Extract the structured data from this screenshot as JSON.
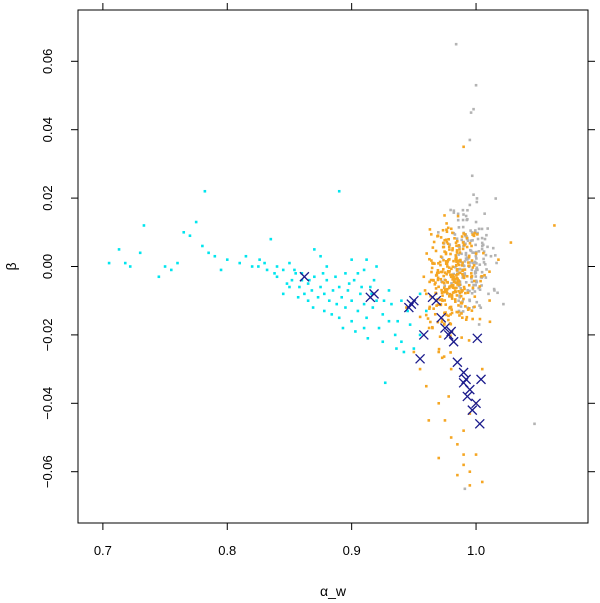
{
  "chart_data": {
    "type": "scatter",
    "title": "",
    "xlabel": "α_w",
    "ylabel": "β",
    "xlim": [
      0.68,
      1.09
    ],
    "ylim": [
      -0.075,
      0.075
    ],
    "x_ticks": [
      0.7,
      0.8,
      0.9,
      1.0
    ],
    "x_tick_labels": [
      "0.7",
      "0.8",
      "0.9",
      "1.0"
    ],
    "y_ticks": [
      -0.06,
      -0.04,
      -0.02,
      0.0,
      0.02,
      0.04,
      0.06
    ],
    "y_tick_labels": [
      "−0.06",
      "−0.04",
      "−0.02",
      "0.00",
      "0.02",
      "0.04",
      "0.06"
    ],
    "grid": false,
    "legend": "none",
    "series": [
      {
        "color": "#b3b3b3",
        "marker": "square-dot",
        "cluster": {
          "center": [
            0.995,
            0.002
          ],
          "spread": [
            0.009,
            0.009
          ],
          "count": 170,
          "seed": 11
        },
        "points": [
          [
            0.984,
            0.065
          ],
          [
            1.0,
            0.053
          ],
          [
            0.998,
            0.046
          ],
          [
            0.996,
            0.045
          ],
          [
            0.995,
            0.037
          ],
          [
            0.998,
            0.021
          ],
          [
            0.995,
            0.018
          ],
          [
            1.0,
            0.013
          ],
          [
            1.01,
            -0.008
          ],
          [
            1.022,
            -0.011
          ],
          [
            1.047,
            -0.046
          ],
          [
            0.991,
            -0.065
          ],
          [
            0.986,
            -0.01
          ],
          [
            1.005,
            0.006
          ],
          [
            1.012,
            0.003
          ]
        ]
      },
      {
        "color": "#f5a623",
        "marker": "square-dot",
        "cluster": {
          "center": [
            0.98,
            -0.004
          ],
          "spread": [
            0.01,
            0.008
          ],
          "count": 300,
          "seed": 7
        },
        "points": [
          [
            1.063,
            0.012
          ],
          [
            0.99,
            0.035
          ],
          [
            0.944,
            -0.012
          ],
          [
            0.95,
            -0.025
          ],
          [
            0.955,
            -0.03
          ],
          [
            0.96,
            -0.035
          ],
          [
            0.97,
            -0.04
          ],
          [
            0.975,
            -0.045
          ],
          [
            0.98,
            -0.05
          ],
          [
            0.985,
            -0.052
          ],
          [
            0.99,
            -0.055
          ],
          [
            0.99,
            -0.058
          ],
          [
            0.995,
            -0.06
          ],
          [
            0.985,
            -0.061
          ],
          [
            1.005,
            -0.063
          ],
          [
            0.995,
            -0.064
          ],
          [
            0.99,
            -0.048
          ],
          [
            1.0,
            -0.055
          ],
          [
            0.995,
            -0.043
          ],
          [
            0.965,
            -0.018
          ],
          [
            0.97,
            -0.025
          ],
          [
            1.0,
            -0.04
          ],
          [
            1.005,
            -0.03
          ],
          [
            0.98,
            -0.03
          ],
          [
            0.978,
            -0.038
          ],
          [
            0.962,
            -0.045
          ],
          [
            1.028,
            0.007
          ],
          [
            1.018,
            0.002
          ],
          [
            0.97,
            -0.056
          ],
          [
            0.96,
            -0.008
          ],
          [
            0.958,
            -0.003
          ]
        ]
      },
      {
        "color": "#00e5ee",
        "marker": "square-dot",
        "points": [
          [
            0.705,
            0.001
          ],
          [
            0.713,
            0.005
          ],
          [
            0.718,
            0.001
          ],
          [
            0.722,
            0.0
          ],
          [
            0.73,
            0.004
          ],
          [
            0.733,
            0.012
          ],
          [
            0.745,
            -0.003
          ],
          [
            0.75,
            0.0
          ],
          [
            0.755,
            -0.001
          ],
          [
            0.76,
            0.001
          ],
          [
            0.765,
            0.01
          ],
          [
            0.77,
            0.009
          ],
          [
            0.775,
            0.013
          ],
          [
            0.78,
            0.006
          ],
          [
            0.782,
            0.022
          ],
          [
            0.785,
            0.004
          ],
          [
            0.79,
            0.003
          ],
          [
            0.795,
            -0.001
          ],
          [
            0.8,
            0.002
          ],
          [
            0.81,
            0.001
          ],
          [
            0.815,
            0.003
          ],
          [
            0.82,
            0.0
          ],
          [
            0.825,
            0.0
          ],
          [
            0.83,
            0.001
          ],
          [
            0.835,
            0.008
          ],
          [
            0.84,
            0.0
          ],
          [
            0.84,
            -0.003
          ],
          [
            0.845,
            -0.001
          ],
          [
            0.848,
            -0.005
          ],
          [
            0.85,
            -0.006
          ],
          [
            0.852,
            -0.004
          ],
          [
            0.855,
            -0.002
          ],
          [
            0.858,
            -0.006
          ],
          [
            0.86,
            -0.004
          ],
          [
            0.862,
            -0.008
          ],
          [
            0.865,
            -0.005
          ],
          [
            0.868,
            -0.007
          ],
          [
            0.87,
            -0.003
          ],
          [
            0.87,
            0.005
          ],
          [
            0.873,
            -0.009
          ],
          [
            0.875,
            -0.006
          ],
          [
            0.878,
            -0.008
          ],
          [
            0.88,
            -0.004
          ],
          [
            0.882,
            -0.01
          ],
          [
            0.885,
            -0.007
          ],
          [
            0.888,
            -0.011
          ],
          [
            0.89,
            -0.006
          ],
          [
            0.89,
            0.022
          ],
          [
            0.892,
            -0.009
          ],
          [
            0.895,
            -0.012
          ],
          [
            0.897,
            -0.007
          ],
          [
            0.9,
            -0.01
          ],
          [
            0.902,
            -0.004
          ],
          [
            0.905,
            -0.013
          ],
          [
            0.907,
            -0.008
          ],
          [
            0.91,
            -0.011
          ],
          [
            0.912,
            0.002
          ],
          [
            0.912,
            -0.015
          ],
          [
            0.915,
            -0.006
          ],
          [
            0.917,
            -0.012
          ],
          [
            0.92,
            -0.01
          ],
          [
            0.92,
            0.0
          ],
          [
            0.922,
            -0.018
          ],
          [
            0.925,
            -0.014
          ],
          [
            0.927,
            -0.034
          ],
          [
            0.93,
            -0.016
          ],
          [
            0.932,
            -0.011
          ],
          [
            0.935,
            -0.02
          ],
          [
            0.937,
            -0.016
          ],
          [
            0.94,
            -0.022
          ],
          [
            0.942,
            -0.025
          ],
          [
            0.945,
            -0.013
          ],
          [
            0.947,
            -0.017
          ],
          [
            0.95,
            -0.024
          ],
          [
            0.955,
            -0.02
          ],
          [
            0.85,
            0.001
          ],
          [
            0.86,
            -0.002
          ],
          [
            0.88,
            0.0
          ],
          [
            0.895,
            -0.002
          ],
          [
            0.905,
            -0.002
          ],
          [
            0.918,
            -0.004
          ],
          [
            0.93,
            -0.007
          ],
          [
            0.865,
            -0.01
          ],
          [
            0.878,
            -0.013
          ],
          [
            0.89,
            -0.015
          ],
          [
            0.9,
            -0.016
          ],
          [
            0.91,
            -0.018
          ],
          [
            0.925,
            -0.022
          ],
          [
            0.875,
            0.003
          ],
          [
            0.9,
            0.002
          ],
          [
            0.91,
            -0.001
          ],
          [
            0.94,
            -0.01
          ],
          [
            0.955,
            -0.008
          ],
          [
            0.96,
            -0.013
          ],
          [
            0.838,
            -0.002
          ],
          [
            0.845,
            -0.008
          ],
          [
            0.857,
            -0.009
          ],
          [
            0.869,
            -0.012
          ],
          [
            0.884,
            -0.014
          ],
          [
            0.893,
            -0.018
          ],
          [
            0.903,
            -0.019
          ],
          [
            0.913,
            -0.021
          ],
          [
            0.936,
            -0.024
          ],
          [
            0.826,
            0.002
          ],
          [
            0.832,
            -0.001
          ],
          [
            0.854,
            -0.001
          ],
          [
            0.866,
            -0.004
          ],
          [
            0.877,
            -0.002
          ],
          [
            0.887,
            -0.003
          ],
          [
            0.898,
            -0.005
          ],
          [
            0.908,
            -0.006
          ],
          [
            0.916,
            -0.008
          ],
          [
            0.926,
            -0.01
          ]
        ]
      },
      {
        "color": "#1a1a8c",
        "marker": "x",
        "points": [
          [
            0.862,
            -0.003
          ],
          [
            0.915,
            -0.009
          ],
          [
            0.918,
            -0.008
          ],
          [
            0.946,
            -0.012
          ],
          [
            0.948,
            -0.011
          ],
          [
            0.95,
            -0.01
          ],
          [
            0.955,
            -0.027
          ],
          [
            0.958,
            -0.02
          ],
          [
            0.965,
            -0.009
          ],
          [
            0.968,
            -0.01
          ],
          [
            0.972,
            -0.015
          ],
          [
            0.975,
            -0.018
          ],
          [
            0.978,
            -0.02
          ],
          [
            0.98,
            -0.019
          ],
          [
            0.982,
            -0.022
          ],
          [
            0.99,
            -0.031
          ],
          [
            0.99,
            -0.034
          ],
          [
            0.992,
            -0.033
          ],
          [
            0.995,
            -0.036
          ],
          [
            0.997,
            -0.042
          ],
          [
            1.0,
            -0.04
          ],
          [
            1.001,
            -0.021
          ],
          [
            1.003,
            -0.046
          ],
          [
            1.004,
            -0.033
          ],
          [
            0.985,
            -0.028
          ],
          [
            0.993,
            -0.038
          ]
        ]
      }
    ]
  }
}
